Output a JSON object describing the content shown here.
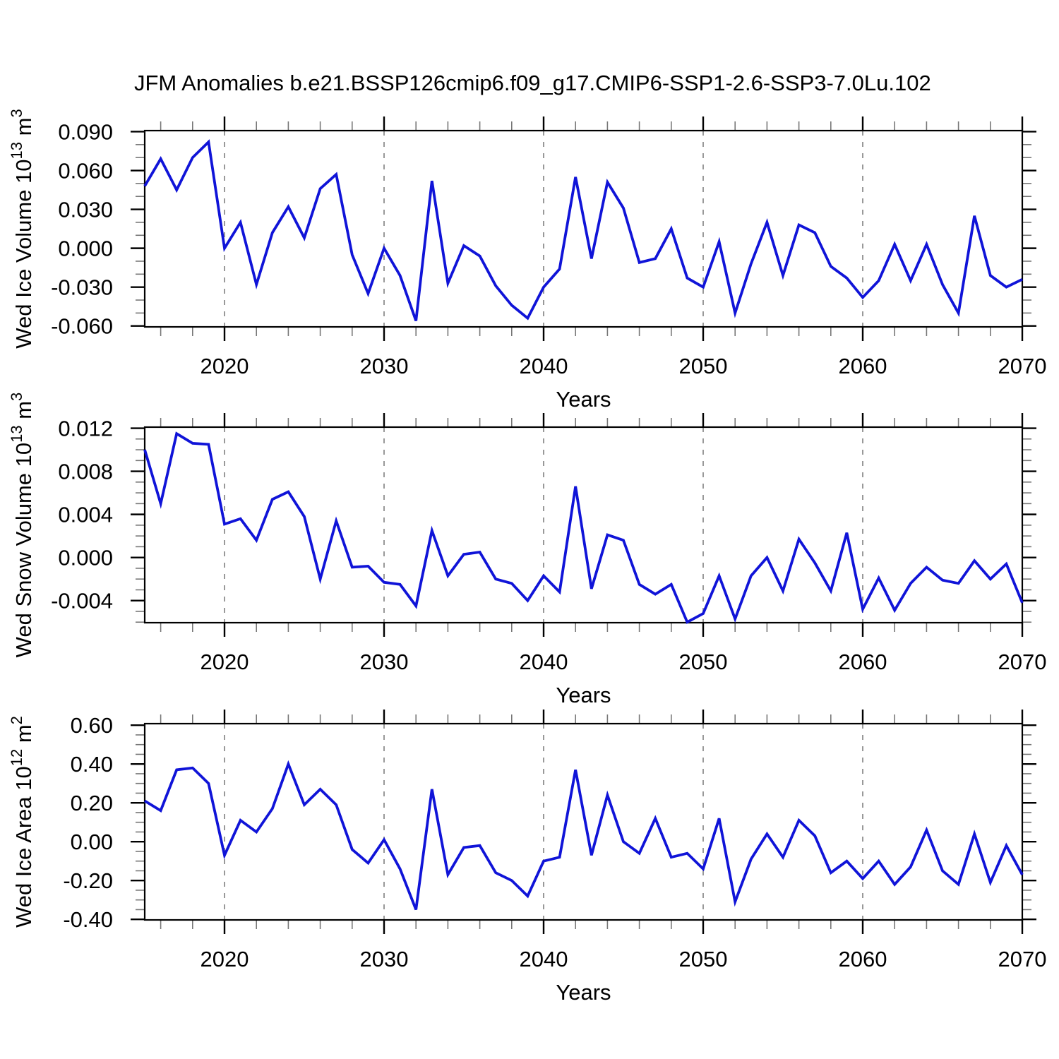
{
  "title": "JFM Anomalies b.e21.BSSP126cmip6.f09_g17.CMIP6-SSP1-2.6-SSP3-7.0Lu.102",
  "colors": {
    "line": "#1014d8",
    "grid": "#999999",
    "axis": "#000000",
    "minor_tick": "#777777",
    "background": "#ffffff"
  },
  "chart_data": [
    {
      "type": "line",
      "title": "",
      "ylabel": "Wed Ice Volume 10^13 m^3",
      "ylabel_parts": [
        {
          "text": "Wed Ice Volume 10"
        },
        {
          "text": "13",
          "sup": true
        },
        {
          "text": " m"
        },
        {
          "text": "3",
          "sup": true
        }
      ],
      "xlabel": "Years",
      "legend": "none",
      "grid": "vertical-dashed-decades",
      "x_start": 2015,
      "x_step": 1,
      "xlim": [
        2015,
        2070
      ],
      "ylim": [
        -0.0607,
        0.0908
      ],
      "xticks": [
        2020,
        2030,
        2040,
        2050,
        2060,
        2070
      ],
      "xtick_labels": [
        "2020",
        "2030",
        "2040",
        "2050",
        "2060",
        "2070"
      ],
      "x_minor_step": 2,
      "grid_x": [
        2020,
        2030,
        2040,
        2050,
        2060
      ],
      "yticks": [
        0.09,
        0.06,
        0.03,
        0.0,
        -0.03,
        -0.06
      ],
      "ytick_labels": [
        "0.090",
        "0.060",
        "0.030",
        "0.000",
        "-0.030",
        "-0.060"
      ],
      "y_major_step": 0.03,
      "y_minor_step": 0.01,
      "values": [
        0.048,
        0.069,
        0.045,
        0.07,
        0.082,
        0.0,
        0.02,
        -0.028,
        0.012,
        0.032,
        0.008,
        0.046,
        0.057,
        -0.005,
        -0.035,
        0.0,
        -0.021,
        -0.056,
        0.052,
        -0.027,
        0.002,
        -0.006,
        -0.029,
        -0.044,
        -0.054,
        -0.03,
        -0.016,
        0.055,
        -0.008,
        0.051,
        0.031,
        -0.011,
        -0.008,
        0.015,
        -0.023,
        -0.03,
        0.005,
        -0.05,
        -0.012,
        0.02,
        -0.021,
        0.018,
        0.012,
        -0.014,
        -0.023,
        -0.038,
        -0.025,
        0.003,
        -0.025,
        0.003,
        -0.028,
        -0.05,
        0.025,
        -0.021,
        -0.03,
        -0.024
      ]
    },
    {
      "type": "line",
      "title": "",
      "ylabel": "Wed Snow Volume 10^13 m^3",
      "ylabel_parts": [
        {
          "text": "Wed Snow Volume 10"
        },
        {
          "text": "13",
          "sup": true
        },
        {
          "text": " m"
        },
        {
          "text": "3",
          "sup": true
        }
      ],
      "xlabel": "Years",
      "legend": "none",
      "grid": "vertical-dashed-decades",
      "x_start": 2015,
      "x_step": 1,
      "xlim": [
        2015,
        2070
      ],
      "ylim": [
        -0.00605,
        0.0121
      ],
      "xticks": [
        2020,
        2030,
        2040,
        2050,
        2060,
        2070
      ],
      "xtick_labels": [
        "2020",
        "2030",
        "2040",
        "2050",
        "2060",
        "2070"
      ],
      "x_minor_step": 2,
      "grid_x": [
        2020,
        2030,
        2040,
        2050,
        2060
      ],
      "yticks": [
        0.012,
        0.008,
        0.004,
        0.0,
        -0.004
      ],
      "ytick_labels": [
        "0.012",
        "0.008",
        "0.004",
        "0.000",
        "-0.004"
      ],
      "y_major_step": 0.004,
      "y_minor_step": 0.001,
      "values": [
        0.01,
        0.005,
        0.0115,
        0.0106,
        0.0105,
        0.0031,
        0.0036,
        0.0016,
        0.0054,
        0.0061,
        0.0038,
        -0.002,
        0.0034,
        -0.0009,
        -0.0008,
        -0.0023,
        -0.0025,
        -0.0045,
        0.0025,
        -0.0017,
        0.0003,
        0.0005,
        -0.002,
        -0.0024,
        -0.004,
        -0.0017,
        -0.0032,
        0.0066,
        -0.0029,
        0.0021,
        0.0016,
        -0.0025,
        -0.0034,
        -0.0025,
        -0.006,
        -0.0052,
        -0.0017,
        -0.0057,
        -0.0017,
        0.0,
        -0.0031,
        0.0017,
        -0.0005,
        -0.0031,
        0.0023,
        -0.0048,
        -0.0019,
        -0.0049,
        -0.0024,
        -0.0009,
        -0.0021,
        -0.0024,
        -0.0003,
        -0.002,
        -0.0006,
        -0.0042
      ]
    },
    {
      "type": "line",
      "title": "",
      "ylabel": "Wed Ice Area 10^12 m^2",
      "ylabel_parts": [
        {
          "text": "Wed Ice Area 10"
        },
        {
          "text": "12",
          "sup": true
        },
        {
          "text": " m"
        },
        {
          "text": "2",
          "sup": true
        }
      ],
      "xlabel": "Years",
      "legend": "none",
      "grid": "vertical-dashed-decades",
      "x_start": 2015,
      "x_step": 1,
      "xlim": [
        2015,
        2070
      ],
      "ylim": [
        -0.403,
        0.608
      ],
      "xticks": [
        2020,
        2030,
        2040,
        2050,
        2060,
        2070
      ],
      "xtick_labels": [
        "2020",
        "2030",
        "2040",
        "2050",
        "2060",
        "2070"
      ],
      "x_minor_step": 2,
      "grid_x": [
        2020,
        2030,
        2040,
        2050,
        2060
      ],
      "yticks": [
        0.6,
        0.4,
        0.2,
        0.0,
        -0.2,
        -0.4
      ],
      "ytick_labels": [
        "0.60",
        "0.40",
        "0.20",
        "0.00",
        "-0.20",
        "-0.40"
      ],
      "y_major_step": 0.2,
      "y_minor_step": 0.05,
      "values": [
        0.21,
        0.16,
        0.37,
        0.38,
        0.3,
        -0.07,
        0.11,
        0.05,
        0.17,
        0.4,
        0.19,
        0.27,
        0.19,
        -0.04,
        -0.11,
        0.01,
        -0.14,
        -0.35,
        0.27,
        -0.17,
        -0.03,
        -0.02,
        -0.16,
        -0.2,
        -0.28,
        -0.1,
        -0.08,
        0.37,
        -0.07,
        0.24,
        0.0,
        -0.06,
        0.12,
        -0.08,
        -0.06,
        -0.14,
        0.12,
        -0.31,
        -0.09,
        0.04,
        -0.08,
        0.11,
        0.03,
        -0.16,
        -0.1,
        -0.19,
        -0.1,
        -0.22,
        -0.13,
        0.06,
        -0.15,
        -0.22,
        0.04,
        -0.21,
        -0.02,
        -0.17
      ]
    }
  ]
}
